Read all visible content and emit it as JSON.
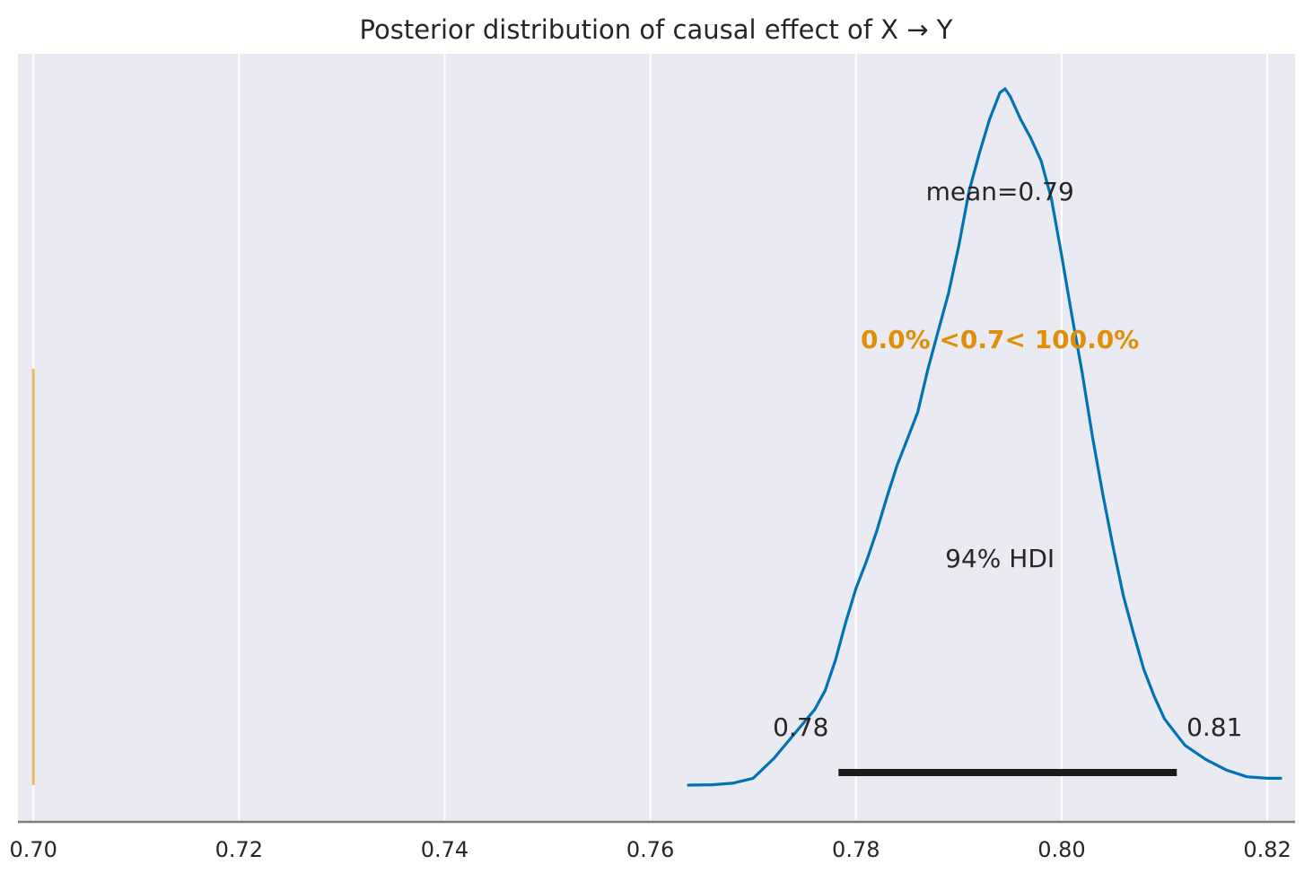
{
  "chart_data": {
    "type": "area",
    "title": "Posterior distribution of causal effect of X → Y",
    "xlabel": "",
    "ylabel": "",
    "xlim": [
      0.6985,
      0.8227
    ],
    "x_ticks": [
      "0.70",
      "0.72",
      "0.74",
      "0.76",
      "0.78",
      "0.80",
      "0.82"
    ],
    "x_tick_values": [
      0.7,
      0.72,
      0.74,
      0.76,
      0.78,
      0.8,
      0.82
    ],
    "grid": "vertical",
    "background_color": "#eaeaf2",
    "series": [
      {
        "color": "#0173b2",
        "x": [
          0.7637,
          0.766,
          0.768,
          0.77,
          0.772,
          0.774,
          0.776,
          0.777,
          0.778,
          0.779,
          0.78,
          0.781,
          0.782,
          0.783,
          0.784,
          0.785,
          0.786,
          0.787,
          0.788,
          0.789,
          0.79,
          0.791,
          0.792,
          0.793,
          0.794,
          0.7945,
          0.795,
          0.796,
          0.797,
          0.798,
          0.799,
          0.8,
          0.801,
          0.802,
          0.803,
          0.804,
          0.805,
          0.806,
          0.807,
          0.808,
          0.809,
          0.81,
          0.811,
          0.812,
          0.814,
          0.816,
          0.818,
          0.82,
          0.8213
        ],
        "density": [
          0.0,
          0.001,
          0.005,
          0.018,
          0.07,
          0.135,
          0.2,
          0.25,
          0.33,
          0.43,
          0.52,
          0.59,
          0.67,
          0.76,
          0.845,
          0.915,
          0.985,
          1.1,
          1.2,
          1.3,
          1.425,
          1.57,
          1.67,
          1.76,
          1.83,
          1.84,
          1.82,
          1.76,
          1.71,
          1.65,
          1.55,
          1.4,
          1.24,
          1.09,
          0.92,
          0.77,
          0.63,
          0.5,
          0.4,
          0.305,
          0.235,
          0.175,
          0.14,
          0.105,
          0.068,
          0.04,
          0.022,
          0.018,
          0.018
        ]
      }
    ],
    "hdi": {
      "low": 0.7783,
      "high": 0.8112,
      "low_label": "0.78",
      "high_label": "0.81",
      "label": "94% HDI",
      "color": "#1a1a1a"
    },
    "mean": {
      "value": 0.794,
      "label": "mean=0.79"
    },
    "ref_val": {
      "value": 0.7,
      "label": "0.0% <0.7< 100.0%",
      "line_color": "#ecb861",
      "text_color": "#de8f05",
      "ymin": 0.0,
      "ymax": 1.1
    }
  }
}
